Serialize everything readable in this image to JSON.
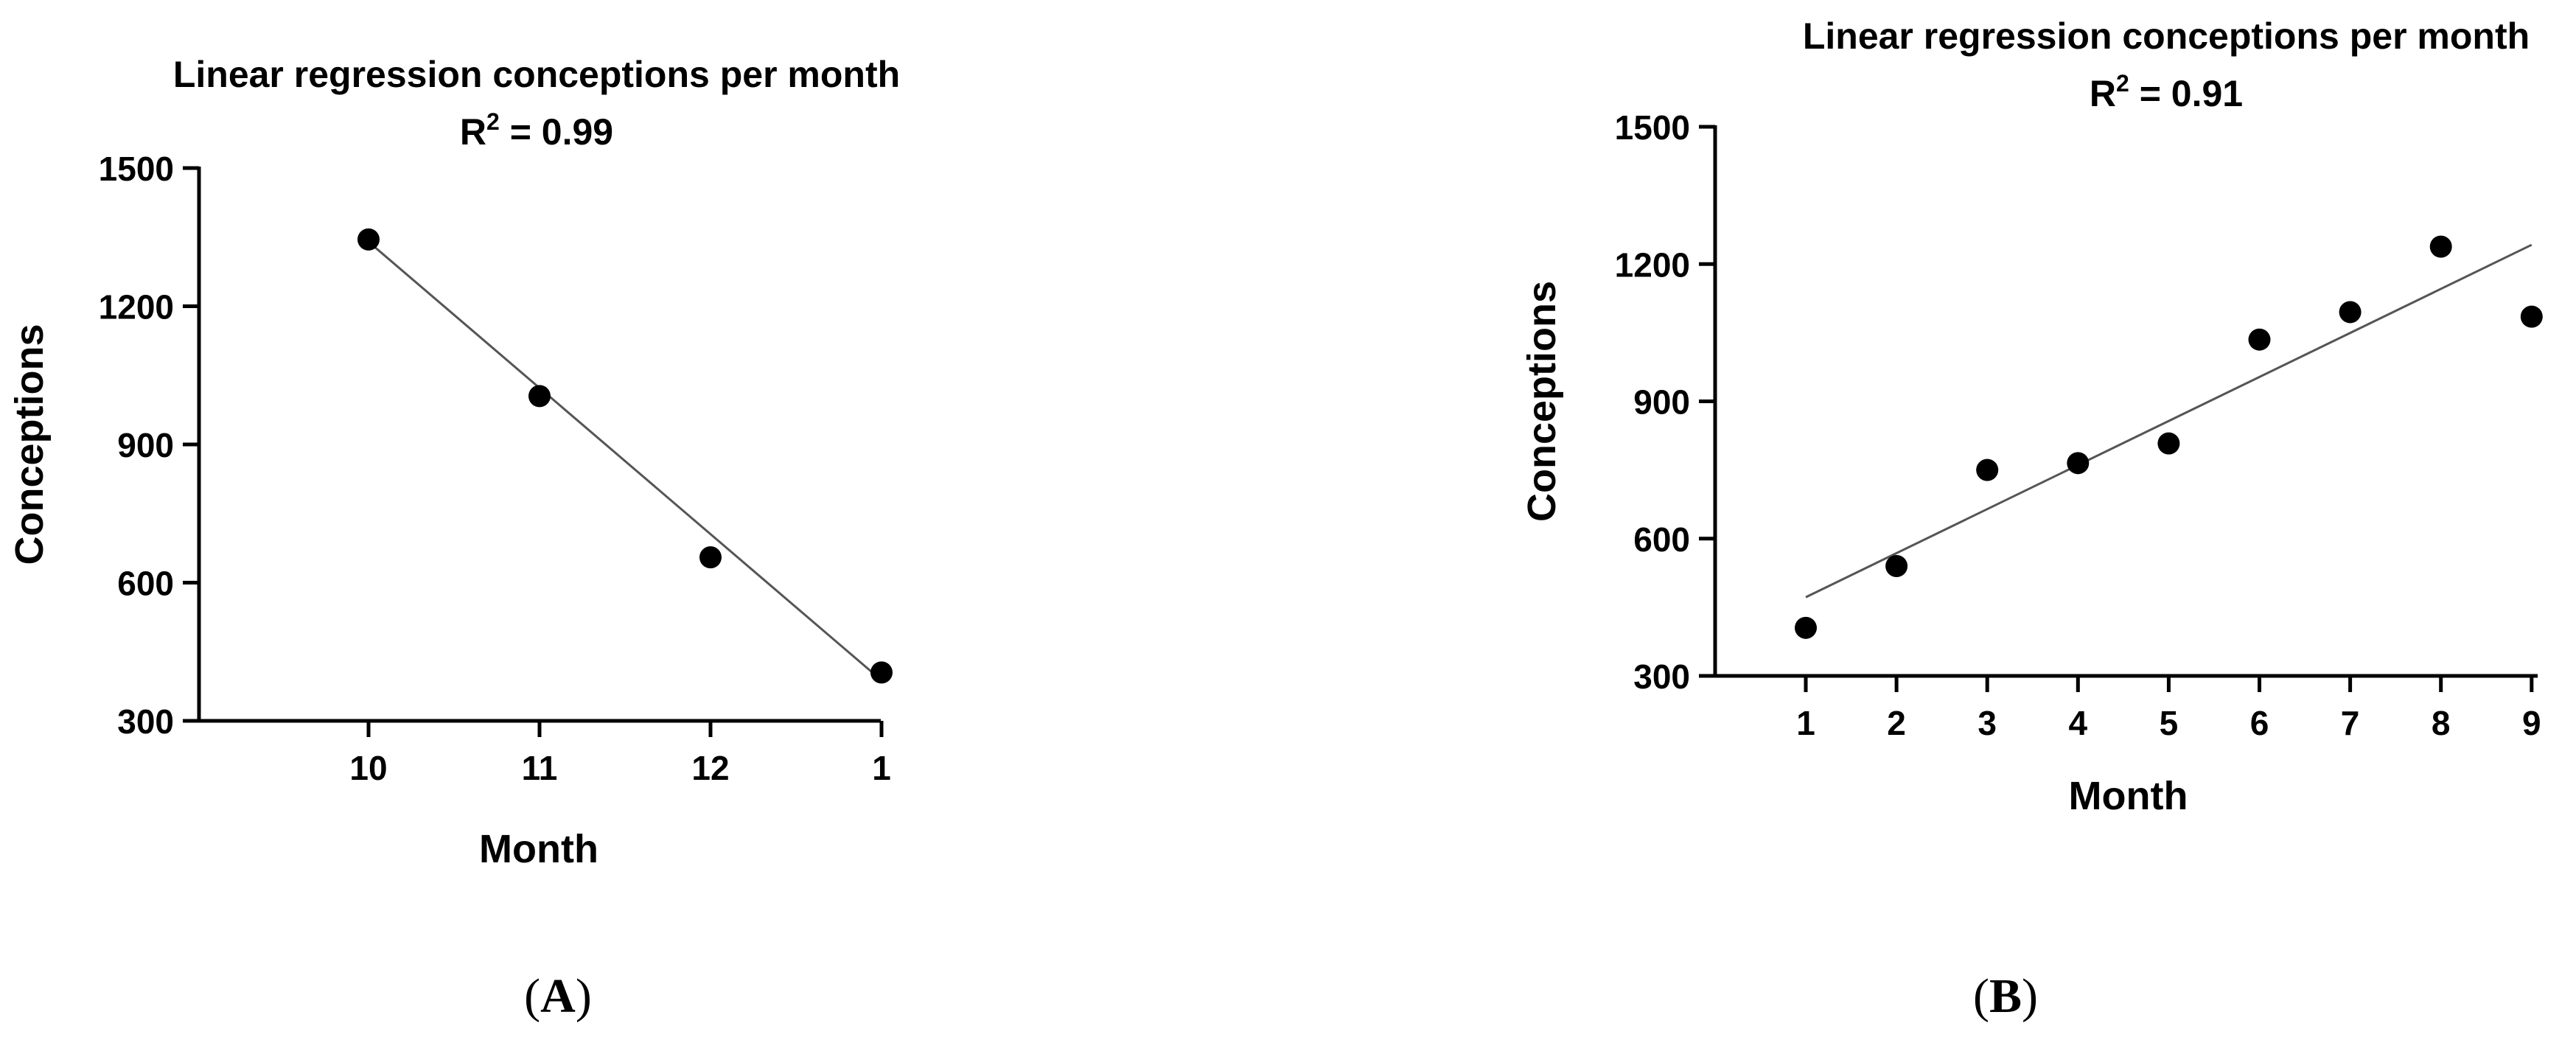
{
  "chart_data": [
    {
      "panel": "(A)",
      "panel_letter": "A",
      "type": "scatter",
      "title": "Linear regression conceptions per month",
      "r2_label": "R",
      "r2_value": "0.99",
      "xlabel": "Month",
      "ylabel": "Conceptions",
      "x_ticks": [
        "10",
        "11",
        "12",
        "1"
      ],
      "y_ticks": [
        300,
        600,
        900,
        1200,
        1500
      ],
      "ylim": [
        300,
        1500
      ],
      "points": [
        {
          "x": "10",
          "y": 1345
        },
        {
          "x": "11",
          "y": 1005
        },
        {
          "x": "12",
          "y": 655
        },
        {
          "x": "1",
          "y": 405
        }
      ],
      "fit_line": {
        "y_start": 1340,
        "y_end": 388
      },
      "grid": false,
      "legend": "none"
    },
    {
      "panel": "(B)",
      "panel_letter": "B",
      "type": "scatter",
      "title": "Linear regression conceptions per month",
      "r2_label": "R",
      "r2_value": "0.91",
      "xlabel": "Month",
      "ylabel": "Conceptions",
      "x_ticks": [
        "1",
        "2",
        "3",
        "4",
        "5",
        "6",
        "7",
        "8",
        "9"
      ],
      "y_ticks": [
        300,
        600,
        900,
        1200,
        1500
      ],
      "ylim": [
        300,
        1500
      ],
      "points": [
        {
          "x": "1",
          "y": 405
        },
        {
          "x": "2",
          "y": 540
        },
        {
          "x": "3",
          "y": 750
        },
        {
          "x": "4",
          "y": 765
        },
        {
          "x": "5",
          "y": 808
        },
        {
          "x": "6",
          "y": 1035
        },
        {
          "x": "7",
          "y": 1095
        },
        {
          "x": "8",
          "y": 1238
        },
        {
          "x": "9",
          "y": 1085
        }
      ],
      "fit_line": {
        "y_start": 472,
        "y_end": 1242
      },
      "grid": false,
      "legend": "none"
    }
  ]
}
